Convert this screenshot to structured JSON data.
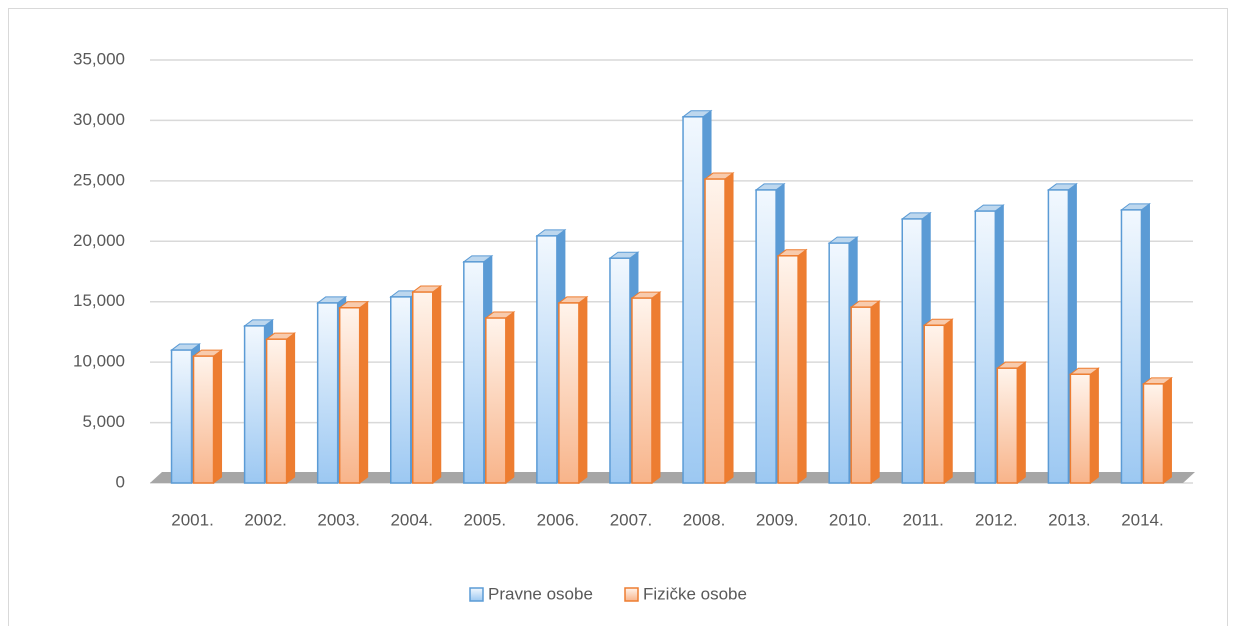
{
  "chart_data": {
    "type": "bar3d",
    "categories": [
      "2001.",
      "2002.",
      "2003.",
      "2004.",
      "2005.",
      "2006.",
      "2007.",
      "2008.",
      "2009.",
      "2010.",
      "2011.",
      "2012.",
      "2013.",
      "2014."
    ],
    "series": [
      {
        "name": "Pravne osobe",
        "color": "#5b9bd5",
        "values": [
          11000,
          13000,
          14900,
          15400,
          18300,
          20450,
          18600,
          30300,
          24250,
          19850,
          21850,
          22500,
          24250,
          22600
        ]
      },
      {
        "name": "Fizičke osobe",
        "color": "#ed7d31",
        "values": [
          10500,
          11900,
          14500,
          15800,
          13650,
          14900,
          15300,
          25150,
          18800,
          14550,
          13050,
          9500,
          9000,
          8200
        ]
      }
    ],
    "ylim": [
      0,
      35000
    ],
    "yticks": [
      0,
      {
        "value": 5000,
        "label": "5,000"
      },
      {
        "value": 10000,
        "label": "10,000"
      },
      {
        "value": 15000,
        "label": "15,000"
      },
      {
        "value": 20000,
        "label": "20,000"
      },
      {
        "value": 25000,
        "label": "25,000"
      },
      {
        "value": 30000,
        "label": "30,000"
      },
      {
        "value": 35000,
        "label": "35,000"
      }
    ],
    "grid": true,
    "legend": "bottom"
  }
}
